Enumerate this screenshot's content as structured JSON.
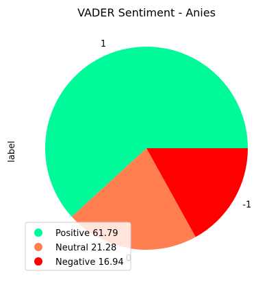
{
  "chart_data": {
    "type": "pie",
    "title": "VADER Sentiment - Anies",
    "ylabel": "label",
    "slices": [
      {
        "label": "1",
        "value": 61.79,
        "color": "#00FA9A"
      },
      {
        "label": "0",
        "value": 21.28,
        "color": "#FF7F50"
      },
      {
        "label": "-1",
        "value": 16.94,
        "color": "#FF0000"
      }
    ],
    "legend": {
      "location": "lower-left",
      "entries": [
        {
          "text": "Positive 61.79",
          "color": "#00FA9A"
        },
        {
          "text": "Neutral 21.28",
          "color": "#FF7F50"
        },
        {
          "text": "Negative 16.94",
          "color": "#FF0000"
        }
      ]
    }
  }
}
